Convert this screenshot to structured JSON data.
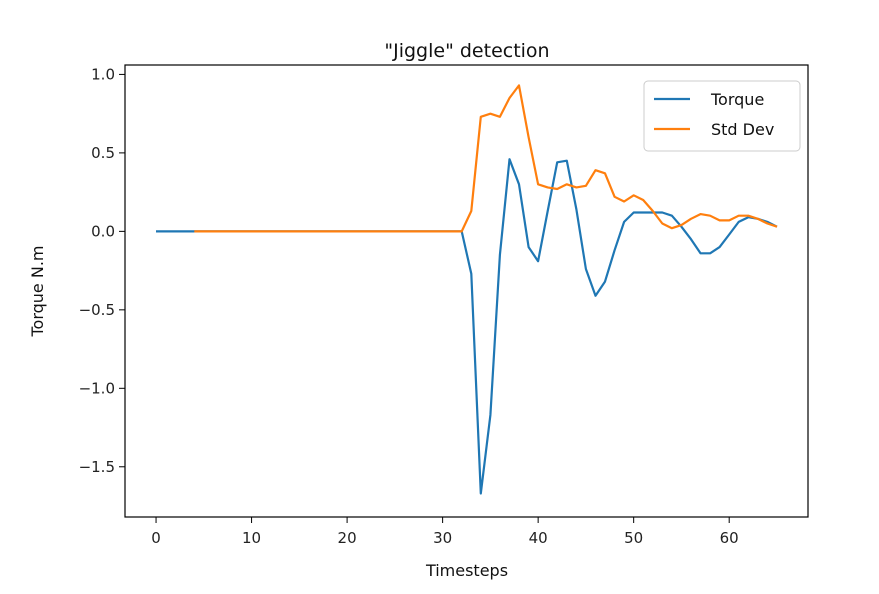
{
  "chart_data": {
    "type": "line",
    "title": "\"Jiggle\" detection",
    "xlabel": "Timesteps",
    "ylabel": "Torque N.m",
    "xlim": [
      -3.25,
      68.25
    ],
    "ylim": [
      -1.82,
      1.06
    ],
    "xticks": [
      0,
      10,
      20,
      30,
      40,
      50,
      60
    ],
    "yticks": [
      1.0,
      0.5,
      0.0,
      -0.5,
      -1.0,
      -1.5
    ],
    "ytick_labels": [
      "1.0",
      "0.5",
      "0.0",
      "−0.5",
      "−1.0",
      "−1.5"
    ],
    "grid": false,
    "legend_position": "upper right",
    "series": [
      {
        "name": "Torque",
        "color": "#1f77b4",
        "x": [
          0,
          1,
          2,
          3,
          4,
          5,
          6,
          7,
          8,
          9,
          10,
          11,
          12,
          13,
          14,
          15,
          16,
          17,
          18,
          19,
          20,
          21,
          22,
          23,
          24,
          25,
          26,
          27,
          28,
          29,
          30,
          31,
          32,
          33,
          34,
          35,
          36,
          37,
          38,
          39,
          40,
          41,
          42,
          43,
          44,
          45,
          46,
          47,
          48,
          49,
          50,
          51,
          52,
          53,
          54,
          55,
          56,
          57,
          58,
          59,
          60,
          61,
          62,
          63,
          64,
          65
        ],
        "values": [
          0,
          0,
          0,
          0,
          0,
          0,
          0,
          0,
          0,
          0,
          0,
          0,
          0,
          0,
          0,
          0,
          0,
          0,
          0,
          0,
          0,
          0,
          0,
          0,
          0,
          0,
          0,
          0,
          0,
          0,
          0,
          0,
          0,
          -0.27,
          -1.67,
          -1.17,
          -0.15,
          0.46,
          0.3,
          -0.1,
          -0.19,
          0.13,
          0.44,
          0.45,
          0.14,
          -0.24,
          -0.41,
          -0.32,
          -0.12,
          0.06,
          0.12,
          0.12,
          0.12,
          0.12,
          0.1,
          0.03,
          -0.05,
          -0.14,
          -0.14,
          -0.1,
          -0.02,
          0.06,
          0.09,
          0.08,
          0.06,
          0.03
        ]
      },
      {
        "name": "Std Dev",
        "color": "#ff7f0e",
        "x": [
          4,
          5,
          6,
          7,
          8,
          9,
          10,
          11,
          12,
          13,
          14,
          15,
          16,
          17,
          18,
          19,
          20,
          21,
          22,
          23,
          24,
          25,
          26,
          27,
          28,
          29,
          30,
          31,
          32,
          33,
          34,
          35,
          36,
          37,
          38,
          39,
          40,
          41,
          42,
          43,
          44,
          45,
          46,
          47,
          48,
          49,
          50,
          51,
          52,
          53,
          54,
          55,
          56,
          57,
          58,
          59,
          60,
          61,
          62,
          63,
          64,
          65
        ],
        "values": [
          0,
          0,
          0,
          0,
          0,
          0,
          0,
          0,
          0,
          0,
          0,
          0,
          0,
          0,
          0,
          0,
          0,
          0,
          0,
          0,
          0,
          0,
          0,
          0,
          0,
          0,
          0,
          0,
          0,
          0.13,
          0.73,
          0.75,
          0.73,
          0.85,
          0.93,
          0.6,
          0.3,
          0.28,
          0.27,
          0.3,
          0.28,
          0.29,
          0.39,
          0.37,
          0.22,
          0.19,
          0.23,
          0.2,
          0.13,
          0.05,
          0.02,
          0.04,
          0.08,
          0.11,
          0.1,
          0.07,
          0.07,
          0.1,
          0.1,
          0.08,
          0.05,
          0.03
        ]
      }
    ]
  }
}
